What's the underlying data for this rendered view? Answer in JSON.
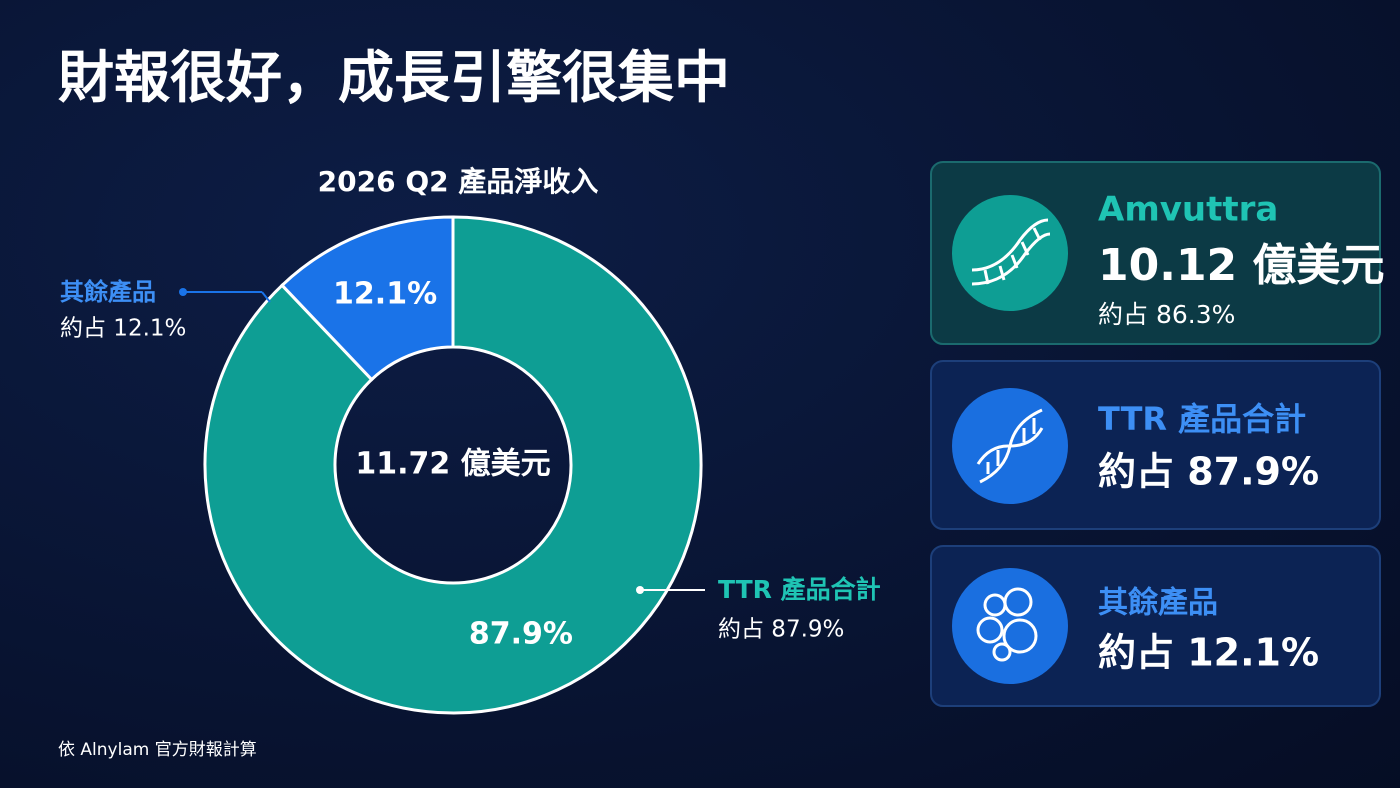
{
  "title": "財報很好，成長引擎很集中",
  "chart_data": {
    "type": "donut",
    "title": "2026 Q2 產品淨收入",
    "center_label": "11.72 億美元",
    "categories": [
      "TTR 產品合計",
      "其餘產品"
    ],
    "values": [
      87.9,
      12.1
    ],
    "value_labels": [
      "87.9%",
      "12.1%"
    ],
    "callout_labels": [
      "約占 87.9%",
      "約占 12.1%"
    ],
    "colors": [
      "#0e9e94",
      "#1a73e8"
    ]
  },
  "cards": [
    {
      "title": "Amvuttra",
      "value": "10.12 億美元",
      "share": "約占 86.3%"
    },
    {
      "title": "TTR 產品合計",
      "share": "約占 87.9%"
    },
    {
      "title": "其餘產品",
      "share": "約占 12.1%"
    }
  ],
  "footnote": "依 Alnylam 官方財報計算"
}
